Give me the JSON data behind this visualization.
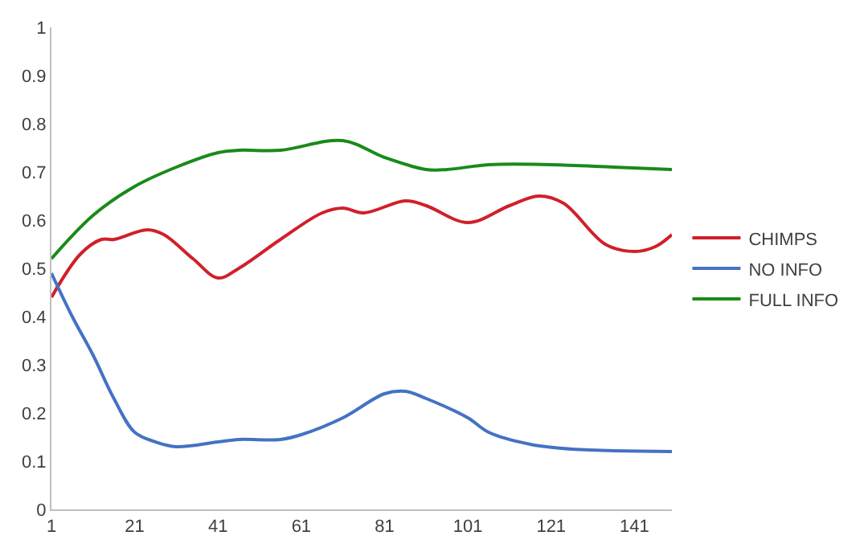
{
  "chart_data": {
    "type": "line",
    "xlim": [
      1,
      150
    ],
    "xticks": [
      1,
      21,
      41,
      61,
      81,
      101,
      121,
      141
    ],
    "ylim": [
      0,
      1
    ],
    "yticks": [
      0,
      0.1,
      0.2,
      0.3,
      0.4,
      0.5,
      0.6,
      0.7,
      0.8,
      0.9,
      1
    ],
    "legend": "right",
    "marker": "none",
    "line_style": "solid",
    "series": [
      {
        "name": "CHIMPS",
        "color": "#d0202a",
        "x": [
          1,
          8,
          13,
          16,
          24,
          28,
          35,
          41,
          46,
          56,
          66,
          71,
          76,
          86,
          91,
          101,
          111,
          118,
          124,
          134,
          141,
          146,
          150
        ],
        "values": [
          0.44,
          0.53,
          0.56,
          0.56,
          0.58,
          0.57,
          0.52,
          0.48,
          0.5,
          0.56,
          0.615,
          0.625,
          0.615,
          0.64,
          0.63,
          0.595,
          0.63,
          0.65,
          0.635,
          0.55,
          0.535,
          0.545,
          0.57
        ]
      },
      {
        "name": "NO INFO",
        "color": "#4472c4",
        "x": [
          1,
          6,
          11,
          16,
          21,
          26,
          31,
          41,
          46,
          56,
          61,
          71,
          81,
          86,
          91,
          101,
          106,
          116,
          126,
          150
        ],
        "values": [
          0.49,
          0.4,
          0.32,
          0.23,
          0.16,
          0.14,
          0.13,
          0.14,
          0.145,
          0.145,
          0.155,
          0.19,
          0.24,
          0.245,
          0.23,
          0.19,
          0.16,
          0.135,
          0.125,
          0.12
        ]
      },
      {
        "name": "FULL INFO",
        "color": "#1a8a1a",
        "x": [
          1,
          11,
          21,
          31,
          41,
          46,
          56,
          71,
          81,
          91,
          96,
          106,
          121,
          136,
          150
        ],
        "values": [
          0.52,
          0.61,
          0.67,
          0.71,
          0.74,
          0.745,
          0.745,
          0.765,
          0.73,
          0.705,
          0.705,
          0.715,
          0.715,
          0.71,
          0.705
        ]
      }
    ]
  }
}
